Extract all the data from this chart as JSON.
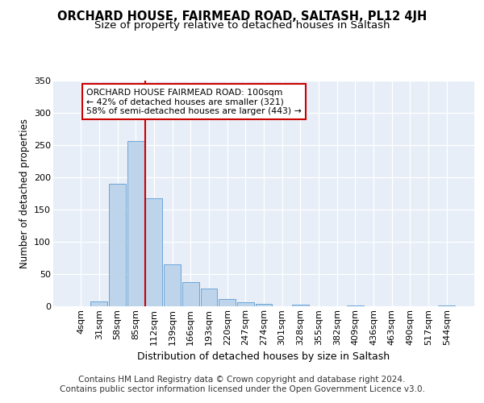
{
  "title": "ORCHARD HOUSE, FAIRMEAD ROAD, SALTASH, PL12 4JH",
  "subtitle": "Size of property relative to detached houses in Saltash",
  "xlabel": "Distribution of detached houses by size in Saltash",
  "ylabel": "Number of detached properties",
  "categories": [
    "4sqm",
    "31sqm",
    "58sqm",
    "85sqm",
    "112sqm",
    "139sqm",
    "166sqm",
    "193sqm",
    "220sqm",
    "247sqm",
    "274sqm",
    "301sqm",
    "328sqm",
    "355sqm",
    "382sqm",
    "409sqm",
    "436sqm",
    "463sqm",
    "490sqm",
    "517sqm",
    "544sqm"
  ],
  "values": [
    0,
    8,
    190,
    256,
    167,
    65,
    37,
    27,
    11,
    6,
    4,
    0,
    3,
    0,
    0,
    1,
    0,
    0,
    0,
    0,
    1
  ],
  "bar_color": "#bdd4eb",
  "bar_edge_color": "#5b9bd5",
  "vline_index": 4,
  "vline_color": "#cc0000",
  "annotation_text": "ORCHARD HOUSE FAIRMEAD ROAD: 100sqm\n← 42% of detached houses are smaller (321)\n58% of semi-detached houses are larger (443) →",
  "annotation_box_color": "#ffffff",
  "annotation_box_edge": "#cc0000",
  "ylim": [
    0,
    350
  ],
  "yticks": [
    0,
    50,
    100,
    150,
    200,
    250,
    300,
    350
  ],
  "plot_bg_color": "#e8eef8",
  "footer": "Contains HM Land Registry data © Crown copyright and database right 2024.\nContains public sector information licensed under the Open Government Licence v3.0.",
  "title_fontsize": 10.5,
  "subtitle_fontsize": 9.5,
  "xlabel_fontsize": 9,
  "ylabel_fontsize": 8.5,
  "footer_fontsize": 7.5,
  "tick_fontsize": 8
}
